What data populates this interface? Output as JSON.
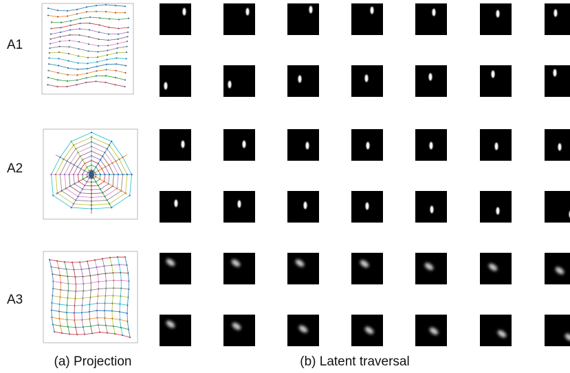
{
  "rows": [
    {
      "label": "A1"
    },
    {
      "label": "A2"
    },
    {
      "label": "A3"
    }
  ],
  "captions": {
    "projection": "(a) Projection",
    "traversal": "(b) Latent traversal"
  }
}
